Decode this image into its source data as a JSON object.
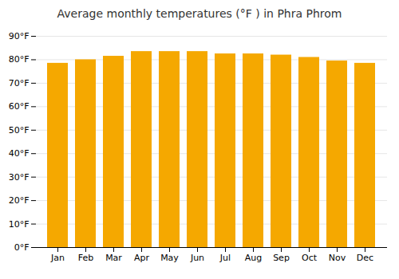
{
  "chart_data": {
    "type": "bar",
    "title": "Average monthly temperatures (°F ) in Phra Phrom",
    "categories": [
      "Jan",
      "Feb",
      "Mar",
      "Apr",
      "May",
      "Jun",
      "Jul",
      "Aug",
      "Sep",
      "Oct",
      "Nov",
      "Dec"
    ],
    "values": [
      78.5,
      80.0,
      81.5,
      83.5,
      83.5,
      83.5,
      82.5,
      82.5,
      82.0,
      81.0,
      79.5,
      78.5
    ],
    "color": "#F5A800",
    "ylim": [
      0,
      90
    ],
    "yticks": [
      {
        "value": 0,
        "label": "0°F"
      },
      {
        "value": 10,
        "label": "10°F"
      },
      {
        "value": 20,
        "label": "20°F"
      },
      {
        "value": 30,
        "label": "30°F"
      },
      {
        "value": 40,
        "label": "40°F"
      },
      {
        "value": 50,
        "label": "50°F"
      },
      {
        "value": 60,
        "label": "60°F"
      },
      {
        "value": 70,
        "label": "70°F"
      },
      {
        "value": 80,
        "label": "80°F"
      },
      {
        "value": 90,
        "label": "90°F"
      }
    ],
    "grid": true
  }
}
